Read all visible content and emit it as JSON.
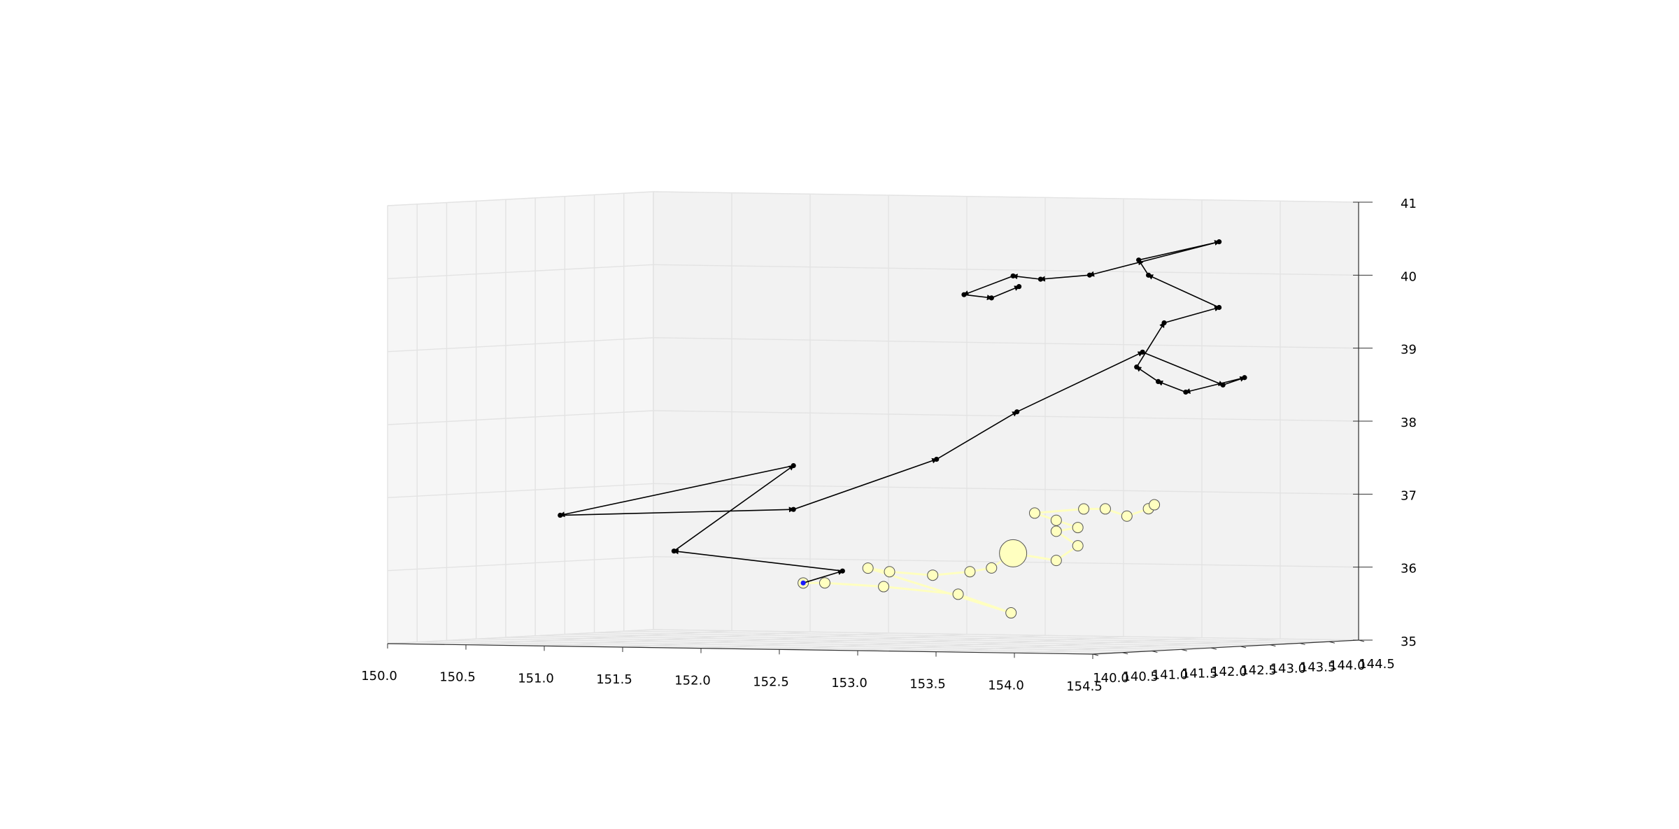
{
  "chart_data": {
    "type": "scatter",
    "plot_kind": "3d-line-with-scatter",
    "title": "",
    "xlabel": "",
    "ylabel": "",
    "zlabel": "",
    "x_ticks": [
      "150.0",
      "150.5",
      "151.0",
      "151.5",
      "152.0",
      "152.5",
      "153.0",
      "153.5",
      "154.0",
      "154.5"
    ],
    "y_ticks": [
      "140.0",
      "140.5",
      "141.0",
      "141.5",
      "142.0",
      "142.5",
      "143.0",
      "143.5",
      "144.0",
      "144.5"
    ],
    "z_ticks": [
      "35",
      "36",
      "37",
      "38",
      "39",
      "40",
      "41"
    ],
    "xlim": [
      150.0,
      154.5
    ],
    "ylim": [
      140.0,
      144.5
    ],
    "zlim": [
      35,
      41
    ],
    "grid": true,
    "colors": {
      "track": "#000000",
      "start_point": "#1a1aff",
      "bubble_fill": "#ffffc0",
      "bubble_edge": "#555555",
      "pane_left": "#f6f6f6",
      "pane_back": "#f2f2f2",
      "pane_floor": "#f4f4f4",
      "grid": "#e3e3e3"
    },
    "track_series": {
      "name": "",
      "points": [
        [
          152.2,
          141.2,
          35.85
        ],
        [
          152.3,
          141.6,
          36.0
        ],
        [
          151.3,
          141.4,
          36.25
        ],
        [
          152.1,
          141.3,
          37.45
        ],
        [
          150.8,
          140.8,
          36.75
        ],
        [
          152.1,
          141.3,
          36.85
        ],
        [
          152.9,
          141.6,
          37.55
        ],
        [
          153.3,
          141.9,
          38.2
        ],
        [
          153.8,
          142.7,
          39.0
        ],
        [
          154.2,
          143.0,
          38.55
        ],
        [
          154.3,
          143.1,
          38.65
        ],
        [
          154.0,
          142.9,
          38.45
        ],
        [
          153.9,
          142.7,
          38.6
        ],
        [
          153.8,
          142.6,
          38.8
        ],
        [
          153.9,
          142.8,
          39.4
        ],
        [
          154.1,
          143.2,
          39.6
        ],
        [
          153.8,
          142.8,
          40.05
        ],
        [
          153.7,
          142.9,
          40.25
        ],
        [
          154.1,
          143.2,
          40.5
        ],
        [
          153.5,
          142.6,
          40.05
        ],
        [
          153.3,
          142.3,
          40.0
        ],
        [
          153.2,
          142.1,
          40.05
        ],
        [
          153.0,
          141.8,
          39.8
        ],
        [
          153.1,
          142.0,
          39.75
        ],
        [
          153.2,
          142.2,
          39.9
        ]
      ]
    },
    "bubble_series": {
      "name": "",
      "points": [
        [
          152.2,
          141.2,
          35.85,
          6
        ],
        [
          152.3,
          141.3,
          35.85,
          6
        ],
        [
          152.6,
          141.5,
          35.8,
          6
        ],
        [
          153.0,
          141.7,
          35.7,
          6
        ],
        [
          153.3,
          141.8,
          35.45,
          6
        ],
        [
          152.5,
          141.5,
          36.05,
          6
        ],
        [
          152.6,
          141.6,
          36.0,
          6
        ],
        [
          152.8,
          141.8,
          35.95,
          6
        ],
        [
          153.0,
          141.9,
          36.0,
          6
        ],
        [
          153.1,
          142.0,
          36.05,
          6
        ],
        [
          153.2,
          142.1,
          36.25,
          18
        ],
        [
          153.4,
          142.3,
          36.15,
          6
        ],
        [
          153.5,
          142.4,
          36.35,
          6
        ],
        [
          153.4,
          142.3,
          36.55,
          6
        ],
        [
          153.5,
          142.4,
          36.6,
          6
        ],
        [
          153.4,
          142.3,
          36.7,
          6
        ],
        [
          153.3,
          142.2,
          36.8,
          6
        ],
        [
          153.5,
          142.5,
          36.85,
          6
        ],
        [
          153.6,
          142.6,
          36.85,
          6
        ],
        [
          153.7,
          142.7,
          36.75,
          6
        ],
        [
          153.8,
          142.8,
          36.85,
          6
        ],
        [
          153.8,
          142.9,
          36.9,
          6
        ]
      ]
    }
  }
}
